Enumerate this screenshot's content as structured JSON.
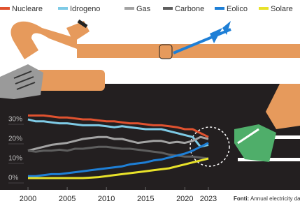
{
  "chart_data": {
    "type": "line",
    "x": [
      2000,
      2001,
      2002,
      2003,
      2004,
      2005,
      2006,
      2007,
      2008,
      2009,
      2010,
      2011,
      2012,
      2013,
      2014,
      2015,
      2016,
      2017,
      2018,
      2019,
      2020,
      2021,
      2022,
      2023
    ],
    "xlim": [
      1998,
      2026
    ],
    "xticks": [
      2000,
      2005,
      2010,
      2015,
      2020,
      2023
    ],
    "ylim": [
      -5,
      35
    ],
    "yticks": [
      {
        "value": 0,
        "label": "0%"
      },
      {
        "value": 10,
        "label": "10%"
      },
      {
        "value": 20,
        "label": "20%"
      },
      {
        "value": 30,
        "label": "30%"
      }
    ],
    "grid": true,
    "series": [
      {
        "name": "Nucleare",
        "color": "#e0522f",
        "values": [
          32,
          32,
          32,
          31.5,
          31,
          31,
          30.5,
          30,
          30,
          29.5,
          29,
          29,
          28.5,
          28,
          28,
          27.5,
          27,
          27,
          26.5,
          26,
          25,
          25,
          23,
          21
        ]
      },
      {
        "name": "Idrogeno",
        "color": "#7fcbe6",
        "values": [
          30,
          29,
          29,
          28.5,
          28,
          28,
          27.5,
          27,
          27,
          27,
          26.5,
          26,
          26.5,
          26,
          25.5,
          25,
          25,
          25,
          24,
          23,
          22,
          21,
          16,
          17
        ]
      },
      {
        "name": "Gas",
        "color": "#a3a3a3",
        "values": [
          14,
          15,
          16,
          17,
          17.5,
          18,
          19,
          20,
          20.5,
          21,
          21,
          20,
          20,
          19,
          18,
          18.5,
          19,
          19,
          18,
          18.5,
          18,
          19,
          21,
          20
        ]
      },
      {
        "name": "Carbone",
        "color": "#5e5e5e",
        "values": [
          14,
          13.5,
          14,
          14,
          14.5,
          14,
          15,
          15,
          15.5,
          16,
          16,
          15.5,
          15,
          15,
          14.5,
          14,
          13.5,
          13,
          12,
          11.5,
          11,
          11,
          10.5,
          10
        ]
      },
      {
        "name": "Eolico",
        "color": "#1e7fd6",
        "values": [
          1,
          1,
          1.5,
          2,
          2,
          2.5,
          3,
          3.5,
          4,
          4.5,
          5,
          5.5,
          6,
          7,
          7.5,
          8,
          9,
          9.5,
          10.5,
          11.5,
          12.5,
          14,
          16,
          18
        ]
      },
      {
        "name": "Solare",
        "color": "#e8e22a",
        "values": [
          0,
          0,
          0,
          0,
          0,
          0,
          0,
          0,
          0.2,
          0.5,
          1,
          1.5,
          2,
          2.5,
          3,
          3.5,
          4,
          4.5,
          5,
          6,
          7,
          8,
          9,
          10
        ]
      }
    ],
    "source_label": "Fonti:",
    "source": "Annual electricity data"
  }
}
